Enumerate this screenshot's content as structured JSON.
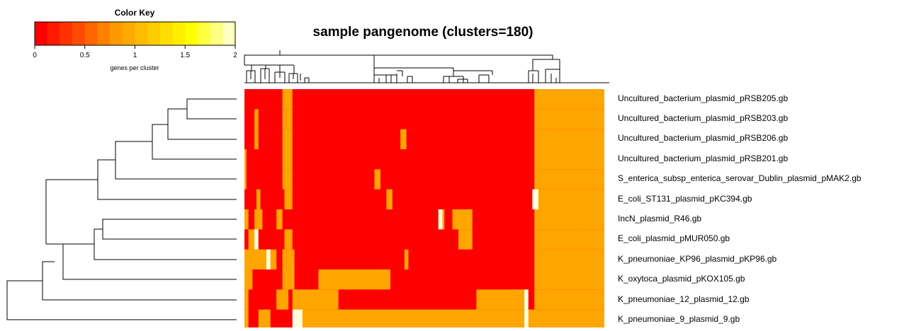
{
  "chart_data": {
    "type": "heatmap",
    "title": "sample pangenome (clusters=180)",
    "color_key": {
      "title": "Color Key",
      "label": "genes per cluster",
      "range": [
        0,
        2
      ],
      "ticks": [
        "0",
        "0.5",
        "1",
        "1.5",
        "2"
      ],
      "colors": [
        "#ff0000",
        "#ff1a00",
        "#ff3300",
        "#ff4c00",
        "#ff6600",
        "#ff8000",
        "#ff9900",
        "#ffaa00",
        "#ffbb00",
        "#ffcc00",
        "#ffdd00",
        "#ffee00",
        "#ffff00",
        "#ffff40",
        "#ffff80",
        "#ffffc0"
      ]
    },
    "rows": [
      "Uncultured_bacterium_plasmid_pRSB205.gb",
      "Uncultured_bacterium_plasmid_pRSB203.gb",
      "Uncultured_bacterium_plasmid_pRSB206.gb",
      "Uncultured_bacterium_plasmid_pRSB201.gb",
      "S_enterica_subsp_enterica_serovar_Dublin_plasmid_pMAK2.gb",
      "E_coli_ST131_plasmid_pKC394.gb",
      "IncN_plasmid_R46.gb",
      "E_coli_plasmid_pMUR050.gb",
      "K_pneumoniae_KP96_plasmid_pKP96.gb",
      "K_oxytoca_plasmid_pKOX105.gb",
      "K_pneumoniae_12_plasmid_12.gb",
      "K_pneumoniae_9_plasmid_9.gb"
    ],
    "n_clusters": 180,
    "value_colors": {
      "0": "#ff0000",
      "1": "#ffa500",
      "2": "#ffffe0"
    },
    "default_value": 0,
    "always_one_cluster_range": [
      145,
      179
    ],
    "segments": [
      [
        [
          19,
          23,
          1
        ]
      ],
      [
        [
          5,
          6,
          1
        ],
        [
          19,
          23,
          1
        ],
        [
          20,
          20,
          0
        ],
        [
          20,
          20,
          1
        ]
      ],
      [
        [
          5,
          6,
          1
        ],
        [
          19,
          23,
          1
        ],
        [
          78,
          80,
          1
        ],
        [
          154,
          155,
          1
        ]
      ],
      [
        [
          0,
          0,
          1
        ],
        [
          19,
          23,
          1
        ],
        [
          168,
          169,
          1
        ]
      ],
      [
        [
          0,
          0,
          1
        ],
        [
          19,
          23,
          1
        ],
        [
          65,
          67,
          1
        ],
        [
          146,
          148,
          1
        ]
      ],
      [
        [
          6,
          7,
          1
        ],
        [
          20,
          23,
          1
        ],
        [
          71,
          73,
          1
        ],
        [
          144,
          146,
          2
        ]
      ],
      [
        [
          0,
          1,
          1
        ],
        [
          5,
          8,
          1
        ],
        [
          16,
          18,
          1
        ],
        [
          97,
          99,
          1
        ],
        [
          97,
          98,
          2
        ],
        [
          104,
          113,
          1
        ]
      ],
      [
        [
          2,
          5,
          1
        ],
        [
          5,
          6,
          2
        ],
        [
          20,
          23,
          1
        ],
        [
          107,
          113,
          1
        ],
        [
          168,
          169,
          1
        ]
      ],
      [
        [
          0,
          15,
          1
        ],
        [
          5,
          6,
          1
        ],
        [
          11,
          12,
          2
        ],
        [
          19,
          20,
          1
        ],
        [
          21,
          24,
          1
        ],
        [
          80,
          81,
          1
        ],
        [
          146,
          148,
          1
        ]
      ],
      [
        [
          0,
          0,
          2
        ],
        [
          0,
          3,
          1
        ],
        [
          19,
          22,
          1
        ],
        [
          22,
          24,
          1
        ],
        [
          37,
          72,
          1
        ],
        [
          149,
          152,
          1
        ],
        [
          153,
          155,
          1
        ]
      ],
      [
        [
          0,
          1,
          1
        ],
        [
          16,
          21,
          1
        ],
        [
          24,
          46,
          1
        ],
        [
          116,
          140,
          1
        ],
        [
          140,
          141,
          2
        ],
        [
          149,
          151,
          1
        ]
      ],
      [
        [
          0,
          1,
          1
        ],
        [
          7,
          12,
          1
        ],
        [
          24,
          25,
          2
        ],
        [
          25,
          29,
          2
        ],
        [
          29,
          145,
          1
        ],
        [
          140,
          141,
          2
        ]
      ]
    ]
  }
}
